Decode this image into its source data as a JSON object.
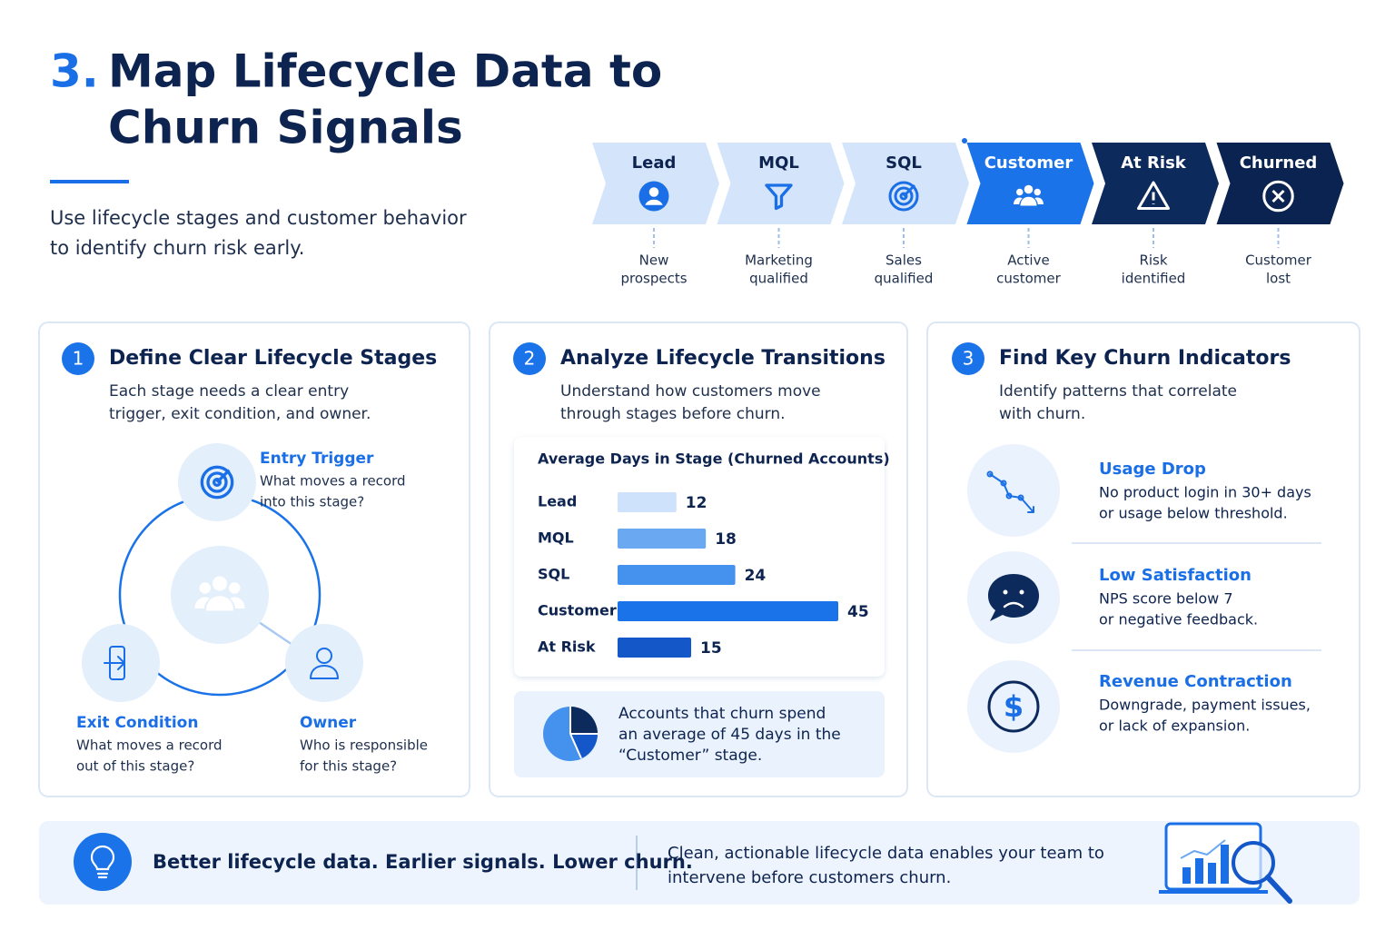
{
  "header": {
    "number": "3.",
    "title": [
      "Map Lifecycle Data to",
      "Churn Signals"
    ],
    "subtitle": [
      "Use lifecycle stages and customer behavior",
      "to identify churn risk early."
    ]
  },
  "stages": [
    {
      "label": "Lead",
      "description": [
        "New",
        "prospects"
      ]
    },
    {
      "label": "MQL",
      "description": [
        "Marketing",
        "qualified"
      ]
    },
    {
      "label": "SQL",
      "description": [
        "Sales",
        "qualified"
      ]
    },
    {
      "label": "Customer",
      "description": [
        "Active",
        "customer"
      ]
    },
    {
      "label": "At Risk",
      "description": [
        "Risk",
        "identified"
      ]
    },
    {
      "label": "Churned",
      "description": [
        "Customer",
        "lost"
      ]
    }
  ],
  "cards": [
    {
      "number": "1",
      "title": "Define Clear Lifecycle Stages",
      "description": [
        "Each stage needs a clear entry",
        "trigger, exit condition, and owner."
      ],
      "items": [
        {
          "title": "Entry Trigger",
          "description": [
            "What moves a record",
            "into this stage?"
          ]
        },
        {
          "title": "Exit Condition",
          "description": [
            "What moves a record",
            "out of this stage?"
          ]
        },
        {
          "title": "Owner",
          "description": [
            "Who is responsible",
            "for this stage?"
          ]
        }
      ]
    },
    {
      "number": "2",
      "title": "Analyze Lifecycle Transitions",
      "description": [
        "Understand how customers move",
        "through stages before churn."
      ],
      "chart": {
        "type": "bar",
        "title": "Average Days in Stage (Churned Accounts)",
        "categories": [
          "Lead",
          "MQL",
          "SQL",
          "Customer",
          "At Risk"
        ],
        "values": [
          12,
          18,
          24,
          45,
          15
        ],
        "colors": [
          "#cfe2fb",
          "#6aa8f2",
          "#4592ee",
          "#1a73e8",
          "#1457c9"
        ]
      },
      "callout": [
        "Accounts that churn spend",
        "an average of 45 days in the",
        "“Customer” stage."
      ]
    },
    {
      "number": "3",
      "title": "Find Key Churn Indicators",
      "description": [
        "Identify patterns that correlate",
        "with churn."
      ],
      "items": [
        {
          "title": "Usage Drop",
          "description": [
            "No product login in 30+ days",
            "or usage below threshold."
          ]
        },
        {
          "title": "Low Satisfaction",
          "description": [
            "NPS score below 7",
            "or negative feedback."
          ]
        },
        {
          "title": "Revenue Contraction",
          "description": [
            "Downgrade, payment issues,",
            "or lack of expansion."
          ]
        }
      ]
    }
  ],
  "footer": {
    "headline": "Better lifecycle data. Earlier signals. Lower churn.",
    "text": [
      "Clean, actionable lifecycle data enables your team to",
      "intervene before customers churn."
    ]
  }
}
